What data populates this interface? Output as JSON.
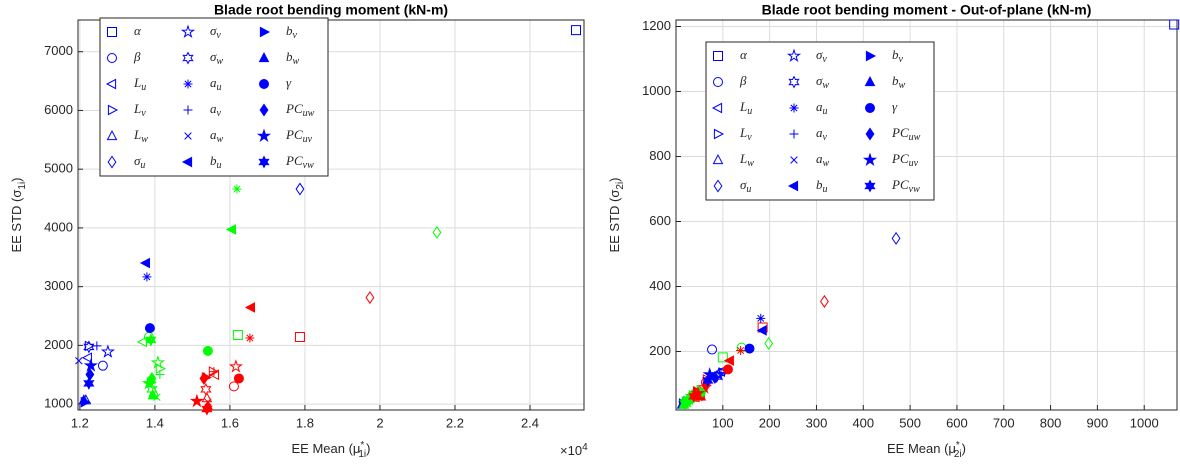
{
  "chart_data": [
    {
      "type": "scatter",
      "title": "Blade root bending moment (kN-m)",
      "xlabel": {
        "text": "EE Mean (μ",
        "sup": "*",
        "sub": "1i",
        "close": ")"
      },
      "ylabel": {
        "text": "EE STD (σ",
        "sub": "1i",
        "close": ")"
      },
      "x_exponent_label": {
        "base": "×10",
        "exp": "4"
      },
      "xlim": [
        11950,
        25440
      ],
      "ylim": [
        900,
        7540
      ],
      "xticks": [
        {
          "value": 12000,
          "label": "1.2"
        },
        {
          "value": 14000,
          "label": "1.4"
        },
        {
          "value": 16000,
          "label": "1.6"
        },
        {
          "value": 18000,
          "label": "1.8"
        },
        {
          "value": 20000,
          "label": "2"
        },
        {
          "value": 22000,
          "label": "2.2"
        },
        {
          "value": 24000,
          "label": "2.4"
        }
      ],
      "yticks": [
        1000,
        2000,
        3000,
        4000,
        5000,
        6000,
        7000
      ],
      "grid": true,
      "legend": "northwest",
      "point_colors": [
        "#0000ff",
        "#ff0000",
        "#00ff00"
      ],
      "color": "#0000ff",
      "series": [
        {
          "name": "α",
          "marker": "square",
          "filled": false,
          "x": [
            25227,
            17867,
            16213
          ],
          "values": [
            7367,
            2142,
            2176
          ]
        },
        {
          "name": "β",
          "marker": "circle",
          "filled": false,
          "x": [
            12613,
            16107,
            13840
          ],
          "values": [
            1655,
            1302,
            2142
          ]
        },
        {
          "name": "L",
          "subscript": "u",
          "marker": "triangle-left",
          "filled": false,
          "x": [
            12213,
            15600,
            13680
          ],
          "values": [
            1790,
            1500,
            2058
          ]
        },
        {
          "name": "L",
          "subscript": "v",
          "marker": "triangle-right",
          "filled": false,
          "x": [
            12240,
            15547,
            14133
          ],
          "values": [
            1991,
            1554,
            1605
          ]
        },
        {
          "name": "L",
          "subscript": "w",
          "marker": "triangle-up",
          "filled": false,
          "x": [
            12160,
            15387,
            13973
          ],
          "values": [
            1067,
            1101,
            1202
          ]
        },
        {
          "name": "σ",
          "subscript": "u",
          "marker": "diamond",
          "filled": false,
          "x": [
            17867,
            19733,
            21520
          ],
          "values": [
            4662,
            2814,
            3923
          ]
        },
        {
          "name": "σ",
          "subscript": "v",
          "marker": "star5",
          "filled": false,
          "x": [
            12747,
            16160,
            14080
          ],
          "values": [
            1890,
            1638,
            1706
          ]
        },
        {
          "name": "σ",
          "subscript": "w",
          "marker": "star6",
          "filled": false,
          "x": [
            12240,
            15360,
            13920
          ],
          "values": [
            1974,
            1252,
            1252
          ]
        },
        {
          "name": "a",
          "subscript": "u",
          "marker": "asterisk",
          "filled": false,
          "x": [
            13787,
            16533,
            16187
          ],
          "values": [
            3167,
            2126,
            4662
          ]
        },
        {
          "name": "a",
          "subscript": "v",
          "marker": "plus",
          "filled": false,
          "x": [
            12453,
            15573,
            14133
          ],
          "values": [
            1991,
            1554,
            1504
          ]
        },
        {
          "name": "a",
          "subscript": "w",
          "marker": "cross",
          "filled": false,
          "x": [
            11973,
            15413,
            14053
          ],
          "values": [
            1739,
            1034,
            1118
          ]
        },
        {
          "name": "b",
          "subscript": "u",
          "marker": "triangle-left",
          "filled": true,
          "x": [
            13760,
            16560,
            16053
          ],
          "values": [
            3402,
            2646,
            3974
          ]
        },
        {
          "name": "b",
          "subscript": "v",
          "marker": "triangle-right",
          "filled": true,
          "x": [
            12133,
            15360,
            13893
          ],
          "values": [
            1034,
            1454,
            1370
          ]
        },
        {
          "name": "b",
          "subscript": "w",
          "marker": "triangle-up",
          "filled": true,
          "x": [
            12107,
            15413,
            13947
          ],
          "values": [
            1067,
            966,
            1151
          ]
        },
        {
          "name": "γ",
          "marker": "circle",
          "filled": true,
          "x": [
            13867,
            16240,
            15413
          ],
          "values": [
            2294,
            1437,
            1907
          ]
        },
        {
          "name": "PC",
          "subscript": "uw",
          "marker": "diamond",
          "filled": true,
          "x": [
            12267,
            15307,
            13920
          ],
          "values": [
            1504,
            1437,
            1437
          ]
        },
        {
          "name": "PC",
          "subscript": "uv",
          "marker": "star5",
          "filled": true,
          "x": [
            12293,
            15120,
            13840
          ],
          "values": [
            1655,
            1050,
            1353
          ]
        },
        {
          "name": "PC",
          "subscript": "vw",
          "marker": "star6",
          "filled": true,
          "x": [
            12240,
            15387,
            13893
          ],
          "values": [
            1353,
            916,
            2092
          ]
        }
      ]
    },
    {
      "type": "scatter",
      "title": "Blade root bending moment - Out-of-plane (kN-m)",
      "xlabel": {
        "text": "EE Mean (μ",
        "sup": "*",
        "sub": "2i",
        "close": ")"
      },
      "ylabel": {
        "text": "EE STD (σ",
        "sub": "2i",
        "close": ")"
      },
      "xlim": [
        0,
        1070
      ],
      "ylim": [
        20,
        1220
      ],
      "xticks": [
        100,
        200,
        300,
        400,
        500,
        600,
        700,
        800,
        900,
        1000
      ],
      "yticks": [
        200,
        400,
        600,
        800,
        1000,
        1200
      ],
      "grid": true,
      "legend": "northwest",
      "point_colors": [
        "#0000ff",
        "#ff0000",
        "#00ff00"
      ],
      "color": "#0000ff",
      "series": [
        {
          "name": "α",
          "marker": "square",
          "filled": false,
          "x": [
            1064,
            185,
            100
          ],
          "values": [
            1206,
            274,
            182
          ]
        },
        {
          "name": "β",
          "marker": "circle",
          "filled": false,
          "x": [
            77,
            64,
            140
          ],
          "values": [
            206,
            105,
            212
          ]
        },
        {
          "name": "L",
          "subscript": "u",
          "marker": "triangle-left",
          "filled": false,
          "x": [
            96,
            53,
            28
          ],
          "values": [
            138,
            74,
            52
          ]
        },
        {
          "name": "L",
          "subscript": "v",
          "marker": "triangle-right",
          "filled": false,
          "x": [
            100,
            66,
            36
          ],
          "values": [
            135,
            114,
            65
          ]
        },
        {
          "name": "L",
          "subscript": "w",
          "marker": "triangle-up",
          "filled": false,
          "x": [
            17,
            40,
            17
          ],
          "values": [
            46,
            58,
            37
          ]
        },
        {
          "name": "σ",
          "subscript": "u",
          "marker": "diamond",
          "filled": false,
          "x": [
            470,
            317,
            198
          ],
          "values": [
            548,
            354,
            225
          ]
        },
        {
          "name": "σ",
          "subscript": "v",
          "marker": "star5",
          "filled": false,
          "x": [
            91,
            60,
            34
          ],
          "values": [
            129,
            89,
            62
          ]
        },
        {
          "name": "σ",
          "subscript": "w",
          "marker": "star6",
          "filled": false,
          "x": [
            87,
            43,
            28
          ],
          "values": [
            123,
            68,
            52
          ]
        },
        {
          "name": "a",
          "subscript": "u",
          "marker": "asterisk",
          "filled": false,
          "x": [
            181,
            138,
            45
          ],
          "values": [
            302,
            203,
            83
          ]
        },
        {
          "name": "a",
          "subscript": "v",
          "marker": "plus",
          "filled": false,
          "x": [
            96,
            66,
            32
          ],
          "values": [
            135,
            95,
            58
          ]
        },
        {
          "name": "a",
          "subscript": "w",
          "marker": "cross",
          "filled": false,
          "x": [
            13,
            49,
            15
          ],
          "values": [
            37,
            58,
            37
          ]
        },
        {
          "name": "b",
          "subscript": "u",
          "marker": "triangle-left",
          "filled": true,
          "x": [
            185,
            115,
            38
          ],
          "values": [
            265,
            172,
            74
          ]
        },
        {
          "name": "b",
          "subscript": "v",
          "marker": "triangle-right",
          "filled": true,
          "x": [
            15,
            45,
            21
          ],
          "values": [
            40,
            77,
            46
          ]
        },
        {
          "name": "b",
          "subscript": "w",
          "marker": "triangle-up",
          "filled": true,
          "x": [
            13,
            53,
            17
          ],
          "values": [
            37,
            62,
            37
          ]
        },
        {
          "name": "γ",
          "marker": "circle",
          "filled": true,
          "x": [
            157,
            111,
            53
          ],
          "values": [
            209,
            145,
            74
          ]
        },
        {
          "name": "PC",
          "subscript": "uw",
          "marker": "diamond",
          "filled": true,
          "x": [
            83,
            64,
            30
          ],
          "values": [
            120,
            95,
            52
          ]
        },
        {
          "name": "PC",
          "subscript": "uv",
          "marker": "star5",
          "filled": true,
          "x": [
            72,
            47,
            23
          ],
          "values": [
            129,
            71,
            46
          ]
        },
        {
          "name": "PC",
          "subscript": "vw",
          "marker": "star6",
          "filled": true,
          "x": [
            68,
            38,
            19
          ],
          "values": [
            111,
            62,
            40
          ]
        }
      ]
    }
  ]
}
